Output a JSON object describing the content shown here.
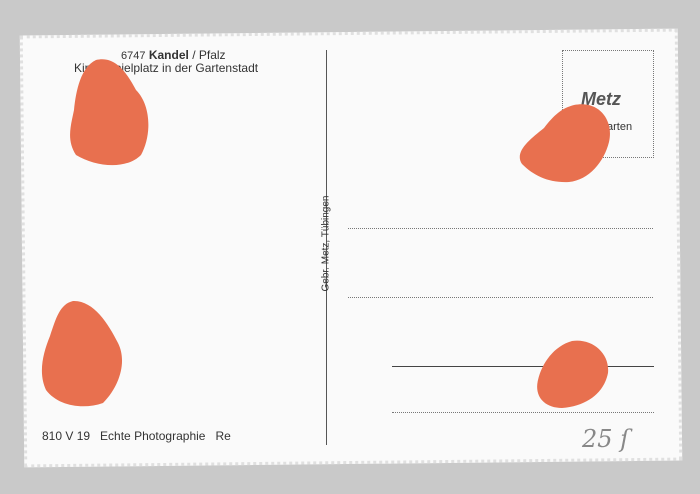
{
  "postcard": {
    "heading": {
      "code": "6747",
      "town": "Kandel",
      "region": "/ Pfalz"
    },
    "caption": "Kinderspielplatz in der Gartenstadt",
    "footer": "810 V 19   Echte Photographie   Re",
    "publisher": "Gebr. Metz, Tübingen",
    "stamp": {
      "logo": "Metz",
      "text": "arten"
    },
    "handwriting": "25 ſ",
    "colors": {
      "sticker": "#e8704f",
      "card": "#fafafa",
      "background": "#c9c9c9"
    }
  }
}
